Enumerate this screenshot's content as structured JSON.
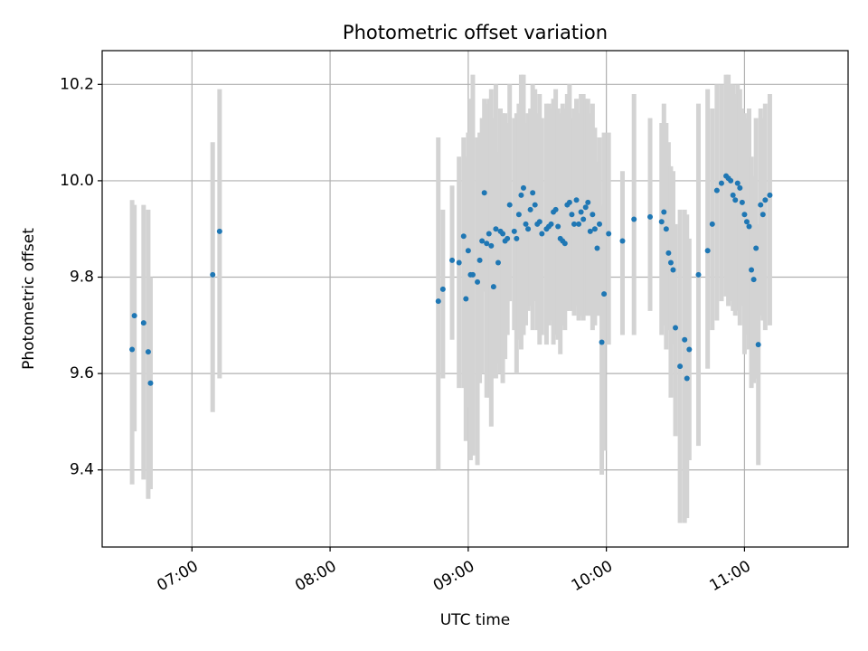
{
  "chart_data": {
    "type": "scatter",
    "title": "Photometric offset variation",
    "xlabel": "UTC time",
    "ylabel": "Photometric offset",
    "xlim": [
      "06:21",
      "11:45"
    ],
    "ylim": [
      9.24,
      10.27
    ],
    "x_ticks": [
      "07:00",
      "08:00",
      "09:00",
      "10:00",
      "11:00"
    ],
    "y_ticks": [
      "9.4",
      "9.6",
      "9.8",
      "10.0",
      "10.2"
    ],
    "y_tick_values": [
      9.4,
      9.6,
      9.8,
      10.0,
      10.2
    ],
    "grid": true,
    "colors": {
      "points": "#1f77b4",
      "errorbars": "#d3d3d3",
      "grid": "#b0b0b0"
    },
    "series": [
      {
        "x": [
          "06:34",
          "06:35",
          "06:39",
          "06:41",
          "06:42",
          "07:09",
          "07:12",
          "08:47",
          "08:49",
          "08:53",
          "08:56",
          "08:58",
          "08:59",
          "09:00",
          "09:01",
          "09:02",
          "09:04",
          "09:05",
          "09:06",
          "09:07",
          "09:08",
          "09:09",
          "09:10",
          "09:11",
          "09:12",
          "09:13",
          "09:14",
          "09:15",
          "09:16",
          "09:17",
          "09:18",
          "09:20",
          "09:21",
          "09:22",
          "09:23",
          "09:24",
          "09:25",
          "09:26",
          "09:27",
          "09:28",
          "09:29",
          "09:30",
          "09:31",
          "09:32",
          "09:34",
          "09:35",
          "09:36",
          "09:37",
          "09:38",
          "09:39",
          "09:40",
          "09:41",
          "09:42",
          "09:43",
          "09:44",
          "09:45",
          "09:46",
          "09:47",
          "09:48",
          "09:49",
          "09:50",
          "09:51",
          "09:52",
          "09:53",
          "09:54",
          "09:55",
          "09:56",
          "09:57",
          "09:58",
          "09:59",
          "10:01",
          "10:07",
          "10:12",
          "10:19",
          "10:24",
          "10:25",
          "10:26",
          "10:27",
          "10:28",
          "10:29",
          "10:30",
          "10:32",
          "10:34",
          "10:35",
          "10:36",
          "10:40",
          "10:44",
          "10:46",
          "10:48",
          "10:50",
          "10:52",
          "10:53",
          "10:54",
          "10:55",
          "10:56",
          "10:57",
          "10:58",
          "10:59",
          "11:00",
          "11:01",
          "11:02",
          "11:03",
          "11:04",
          "11:05",
          "11:06",
          "11:07",
          "11:08",
          "11:09",
          "11:11"
        ],
        "y": [
          9.65,
          9.72,
          9.705,
          9.645,
          9.58,
          9.805,
          9.895,
          9.75,
          9.775,
          9.835,
          9.83,
          9.885,
          9.755,
          9.855,
          9.805,
          9.805,
          9.79,
          9.835,
          9.875,
          9.975,
          9.87,
          9.89,
          9.865,
          9.78,
          9.9,
          9.83,
          9.895,
          9.89,
          9.875,
          9.88,
          9.95,
          9.895,
          9.88,
          9.93,
          9.97,
          9.985,
          9.91,
          9.9,
          9.94,
          9.975,
          9.95,
          9.91,
          9.915,
          9.89,
          9.9,
          9.905,
          9.91,
          9.935,
          9.94,
          9.905,
          9.88,
          9.875,
          9.87,
          9.95,
          9.955,
          9.93,
          9.91,
          9.96,
          9.91,
          9.935,
          9.92,
          9.945,
          9.955,
          9.895,
          9.93,
          9.9,
          9.86,
          9.91,
          9.665,
          9.765,
          9.89,
          9.875,
          9.92,
          9.925,
          9.915,
          9.935,
          9.9,
          9.85,
          9.83,
          9.815,
          9.695,
          9.615,
          9.67,
          9.59,
          9.65,
          9.805,
          9.855,
          9.91,
          9.98,
          9.995,
          10.01,
          10.005,
          10.0,
          9.97,
          9.96,
          9.995,
          9.985,
          9.955,
          9.93,
          9.915,
          9.905,
          9.815,
          9.795,
          9.86,
          9.66,
          9.95,
          9.93,
          9.96,
          9.97
        ],
        "err_low": [
          9.37,
          9.48,
          9.38,
          9.34,
          9.36,
          9.52,
          9.59,
          9.4,
          9.59,
          9.67,
          9.57,
          9.57,
          9.46,
          9.53,
          9.42,
          9.43,
          9.41,
          9.58,
          9.6,
          9.77,
          9.55,
          9.55,
          9.49,
          9.59,
          9.59,
          9.62,
          9.6,
          9.58,
          9.63,
          9.68,
          9.75,
          9.69,
          9.6,
          9.67,
          9.65,
          9.68,
          9.7,
          9.73,
          9.74,
          9.69,
          9.75,
          9.69,
          9.66,
          9.68,
          9.66,
          9.7,
          9.71,
          9.66,
          9.68,
          9.67,
          9.64,
          9.7,
          9.69,
          9.73,
          9.73,
          9.73,
          9.72,
          9.74,
          9.71,
          9.72,
          9.71,
          9.72,
          9.72,
          9.72,
          9.69,
          9.7,
          9.72,
          9.72,
          9.39,
          9.44,
          9.66,
          9.68,
          9.68,
          9.73,
          9.68,
          9.7,
          9.65,
          9.69,
          9.55,
          9.66,
          9.47,
          9.29,
          9.29,
          9.3,
          9.42,
          9.45,
          9.61,
          9.69,
          9.71,
          9.75,
          9.76,
          9.74,
          9.75,
          9.73,
          9.72,
          9.73,
          9.7,
          9.74,
          9.64,
          9.68,
          9.65,
          9.57,
          9.58,
          9.59,
          9.41,
          9.72,
          9.71,
          9.69,
          9.7
        ],
        "err_high": [
          9.96,
          9.95,
          9.95,
          9.94,
          9.8,
          10.08,
          10.19,
          10.09,
          9.94,
          9.99,
          10.05,
          10.09,
          10.05,
          10.1,
          10.17,
          10.22,
          10.09,
          10.1,
          10.13,
          10.17,
          10.16,
          10.17,
          10.19,
          10.13,
          10.2,
          10.06,
          10.15,
          10.14,
          10.14,
          10.12,
          10.2,
          10.13,
          10.14,
          10.16,
          10.22,
          10.22,
          10.12,
          10.14,
          10.15,
          10.2,
          10.19,
          10.14,
          10.18,
          10.13,
          10.16,
          10.16,
          10.15,
          10.17,
          10.19,
          10.15,
          10.14,
          10.16,
          10.15,
          10.18,
          10.2,
          10.13,
          10.15,
          10.17,
          10.14,
          10.18,
          10.18,
          10.17,
          10.17,
          10.14,
          10.16,
          10.11,
          10.04,
          10.09,
          9.95,
          10.1,
          10.1,
          10.02,
          10.18,
          10.13,
          10.12,
          10.16,
          10.12,
          10.08,
          10.03,
          10.02,
          9.91,
          9.94,
          9.94,
          9.93,
          9.88,
          10.16,
          10.19,
          10.15,
          10.2,
          10.2,
          10.22,
          10.22,
          10.2,
          10.2,
          10.18,
          10.2,
          10.19,
          10.15,
          10.14,
          10.13,
          10.15,
          10.05,
          10.01,
          10.13,
          9.91,
          10.15,
          10.13,
          10.16,
          10.18
        ]
      }
    ]
  }
}
